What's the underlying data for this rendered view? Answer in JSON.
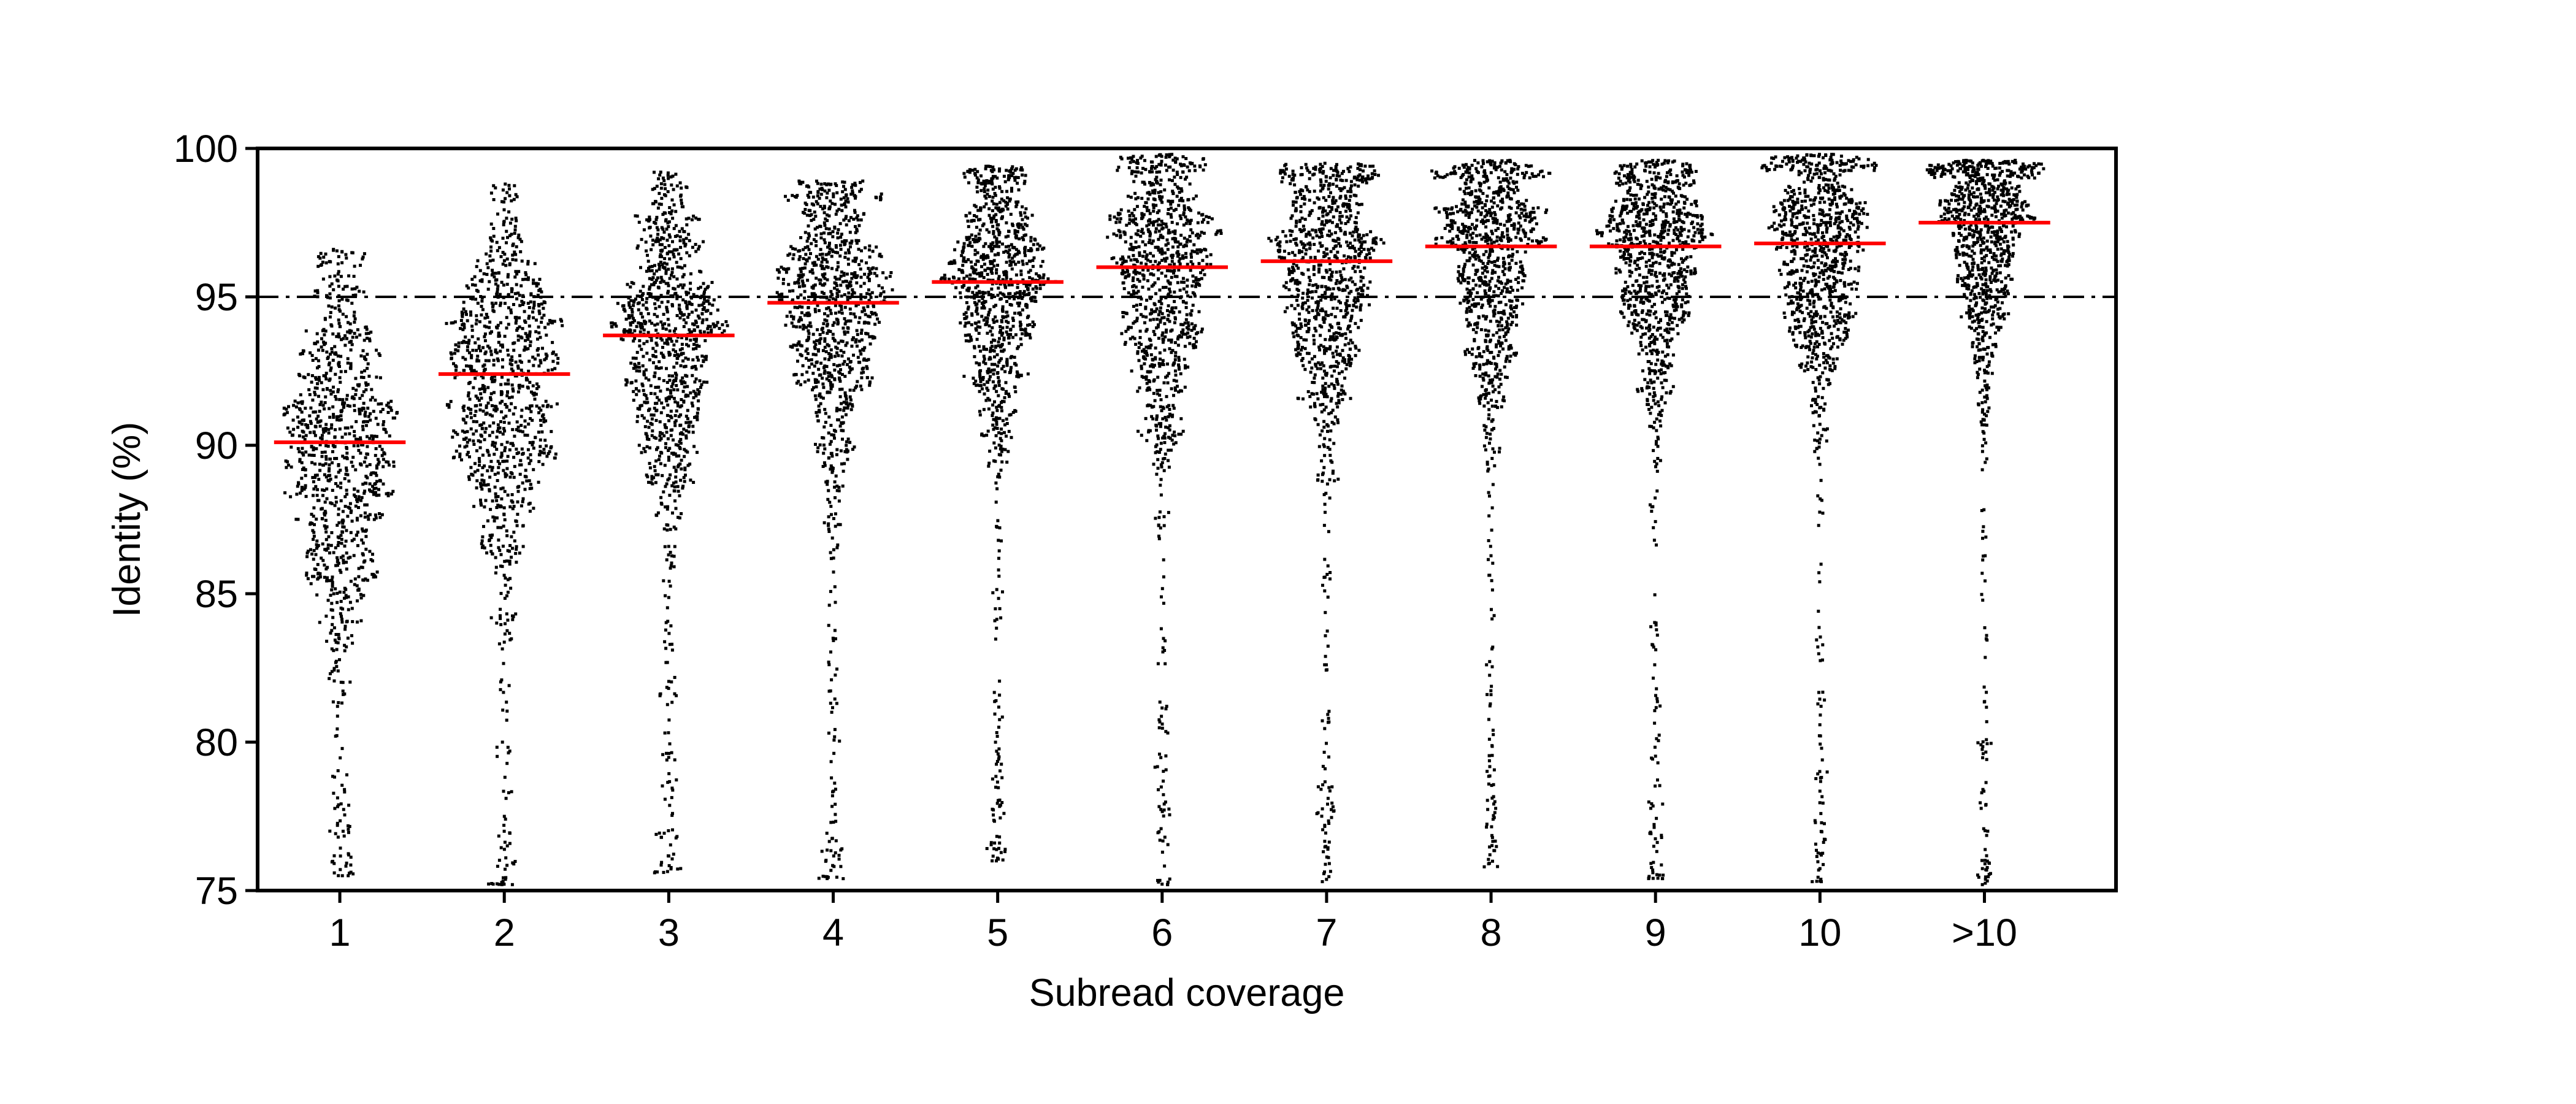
{
  "chart_data": {
    "type": "scatter",
    "subtype": "strip / swarm plot with median markers",
    "title": "",
    "xlabel": "Subread coverage",
    "ylabel": "Identity (%)",
    "categories": [
      "1",
      "2",
      "3",
      "4",
      "5",
      "6",
      "7",
      "8",
      "9",
      "10",
      ">10"
    ],
    "ylim": [
      75,
      100
    ],
    "yticks": [
      75,
      80,
      85,
      90,
      95,
      100
    ],
    "ytick_labels": [
      "75",
      "80",
      "85",
      "90",
      "95",
      "100"
    ],
    "grid": false,
    "legend": "none",
    "reference_line": {
      "y": 95,
      "style": "dash-dot",
      "color": "#000000"
    },
    "median_color": "#ff0000",
    "point_color": "#000000",
    "series": [
      {
        "category": "1",
        "median": 90.1,
        "max": 96.6,
        "min": 75.5,
        "q1": 88.0,
        "q3": 92.2
      },
      {
        "category": "2",
        "median": 92.4,
        "max": 98.8,
        "min": 75.2,
        "q1": 90.2,
        "q3": 94.4
      },
      {
        "category": "3",
        "median": 93.7,
        "max": 99.2,
        "min": 75.6,
        "q1": 91.6,
        "q3": 95.5
      },
      {
        "category": "4",
        "median": 94.8,
        "max": 98.9,
        "min": 75.4,
        "q1": 92.9,
        "q3": 96.5
      },
      {
        "category": "5",
        "median": 95.5,
        "max": 99.4,
        "min": 76.0,
        "q1": 93.7,
        "q3": 97.0
      },
      {
        "category": "6",
        "median": 96.0,
        "max": 99.8,
        "min": 75.2,
        "q1": 94.0,
        "q3": 97.5
      },
      {
        "category": "7",
        "median": 96.2,
        "max": 99.5,
        "min": 75.3,
        "q1": 94.2,
        "q3": 97.7
      },
      {
        "category": "8",
        "median": 96.7,
        "max": 99.6,
        "min": 75.8,
        "q1": 94.8,
        "q3": 98.0
      },
      {
        "category": "9",
        "median": 96.7,
        "max": 99.6,
        "min": 75.4,
        "q1": 94.9,
        "q3": 98.0
      },
      {
        "category": "10",
        "median": 96.8,
        "max": 99.8,
        "min": 75.3,
        "q1": 95.0,
        "q3": 98.2
      },
      {
        "category": ">10",
        "median": 97.5,
        "max": 99.6,
        "min": 75.2,
        "q1": 95.8,
        "q3": 98.6
      }
    ]
  }
}
